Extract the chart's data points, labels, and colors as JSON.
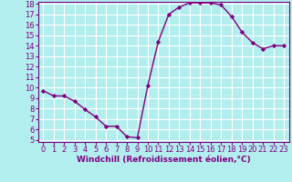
{
  "x": [
    0,
    1,
    2,
    3,
    4,
    5,
    6,
    7,
    8,
    9,
    10,
    11,
    12,
    13,
    14,
    15,
    16,
    17,
    18,
    19,
    20,
    21,
    22,
    23
  ],
  "y": [
    9.7,
    9.2,
    9.2,
    8.7,
    7.9,
    7.2,
    6.3,
    6.3,
    5.3,
    5.2,
    10.2,
    14.4,
    17.0,
    17.7,
    18.1,
    18.1,
    18.1,
    17.9,
    16.8,
    15.3,
    14.3,
    13.7,
    14.0,
    14.0
  ],
  "line_color": "#800080",
  "marker": "D",
  "marker_size": 2.2,
  "background_color": "#b2eeee",
  "grid_color": "#ffffff",
  "xlabel": "Windchill (Refroidissement éolien,°C)",
  "ylim_min": 5,
  "ylim_max": 18,
  "xlim_min": -0.5,
  "xlim_max": 23.5,
  "yticks": [
    5,
    6,
    7,
    8,
    9,
    10,
    11,
    12,
    13,
    14,
    15,
    16,
    17,
    18
  ],
  "xticks": [
    0,
    1,
    2,
    3,
    4,
    5,
    6,
    7,
    8,
    9,
    10,
    11,
    12,
    13,
    14,
    15,
    16,
    17,
    18,
    19,
    20,
    21,
    22,
    23
  ],
  "xlabel_fontsize": 6.5,
  "tick_fontsize": 6.0,
  "line_width": 1.0,
  "label_color": "#800080",
  "spine_color": "#800080"
}
